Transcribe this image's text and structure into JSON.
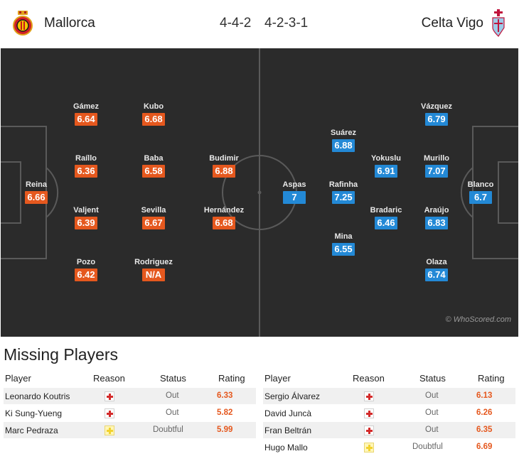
{
  "header": {
    "home_team": "Mallorca",
    "away_team": "Celta Vigo",
    "home_formation": "4-4-2",
    "away_formation": "4-2-3-1"
  },
  "pitch": {
    "watermark": "© WhoScored.com",
    "home_players": [
      {
        "name": "Reina",
        "rating": "6.66"
      },
      {
        "name": "Gámez",
        "rating": "6.64"
      },
      {
        "name": "Raíllo",
        "rating": "6.36"
      },
      {
        "name": "Valjent",
        "rating": "6.39"
      },
      {
        "name": "Pozo",
        "rating": "6.42"
      },
      {
        "name": "Kubo",
        "rating": "6.68"
      },
      {
        "name": "Baba",
        "rating": "6.58"
      },
      {
        "name": "Sevilla",
        "rating": "6.67"
      },
      {
        "name": "Rodriguez",
        "rating": "N/A"
      },
      {
        "name": "Budimir",
        "rating": "6.88"
      },
      {
        "name": "Hernández",
        "rating": "6.68"
      }
    ],
    "away_players": [
      {
        "name": "Aspas",
        "rating": "7"
      },
      {
        "name": "Suárez",
        "rating": "6.88"
      },
      {
        "name": "Rafinha",
        "rating": "7.25"
      },
      {
        "name": "Mina",
        "rating": "6.55"
      },
      {
        "name": "Yokuslu",
        "rating": "6.91"
      },
      {
        "name": "Bradaric",
        "rating": "6.46"
      },
      {
        "name": "Vázquez",
        "rating": "6.79"
      },
      {
        "name": "Murillo",
        "rating": "7.07"
      },
      {
        "name": "Araújo",
        "rating": "6.83"
      },
      {
        "name": "Olaza",
        "rating": "6.74"
      },
      {
        "name": "Blanco",
        "rating": "6.7"
      }
    ]
  },
  "missing": {
    "title": "Missing Players",
    "columns": {
      "player": "Player",
      "reason": "Reason",
      "status": "Status",
      "rating": "Rating"
    },
    "home": [
      {
        "player": "Leonardo Koutris",
        "reason": "injury-icon",
        "status": "Out",
        "rating": "6.33"
      },
      {
        "player": "Ki Sung-Yueng",
        "reason": "injury-icon",
        "status": "Out",
        "rating": "5.82"
      },
      {
        "player": "Marc Pedraza",
        "reason": "doubtful-icon",
        "status": "Doubtful",
        "rating": "5.99"
      }
    ],
    "away": [
      {
        "player": "Sergio Álvarez",
        "reason": "injury-icon",
        "status": "Out",
        "rating": "6.13"
      },
      {
        "player": "David Juncà",
        "reason": "injury-icon",
        "status": "Out",
        "rating": "6.26"
      },
      {
        "player": "Fran Beltrán",
        "reason": "injury-icon",
        "status": "Out",
        "rating": "6.35"
      },
      {
        "player": "Hugo Mallo",
        "reason": "doubtful-icon",
        "status": "Doubtful",
        "rating": "6.69"
      }
    ]
  },
  "colors": {
    "home_rating": "#e5581e",
    "away_rating": "#2389d6",
    "pitch": "#2b2b2b"
  }
}
